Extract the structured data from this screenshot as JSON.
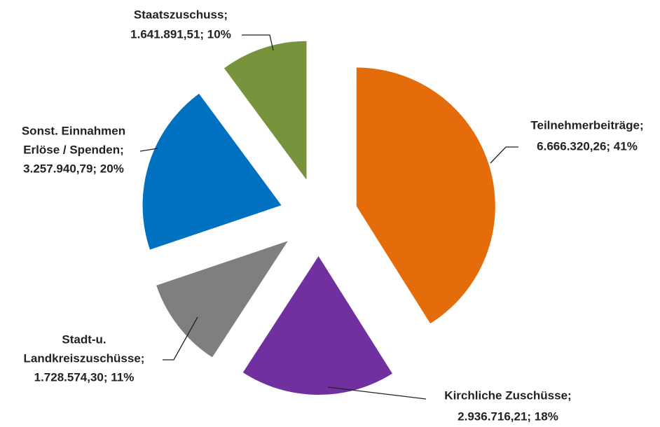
{
  "chart_data": {
    "type": "pie",
    "values": [
      6666320.26,
      2936716.21,
      1728574.3,
      3257940.79,
      1641891.51
    ],
    "value_labels": [
      [
        "Teilnehmerbeiträge;",
        "6.666.320,26; 41%"
      ],
      [
        "Kirchliche Zuschüsse;",
        "2.936.716,21; 18%"
      ],
      [
        "Stadt-u.",
        "Landkreiszuschüsse;",
        "1.728.574,30; 11%"
      ],
      [
        "Sonst. Einnahmen",
        "Erlöse / Spenden;",
        "3.257.940,79; 20%"
      ],
      [
        "Staatszuschuss;",
        "1.641.891,51; 10%"
      ]
    ],
    "colors": [
      "#e46c0a",
      "#7030a0",
      "#7f7f7f",
      "#0070c0",
      "#77933c"
    ],
    "exploded": true
  }
}
